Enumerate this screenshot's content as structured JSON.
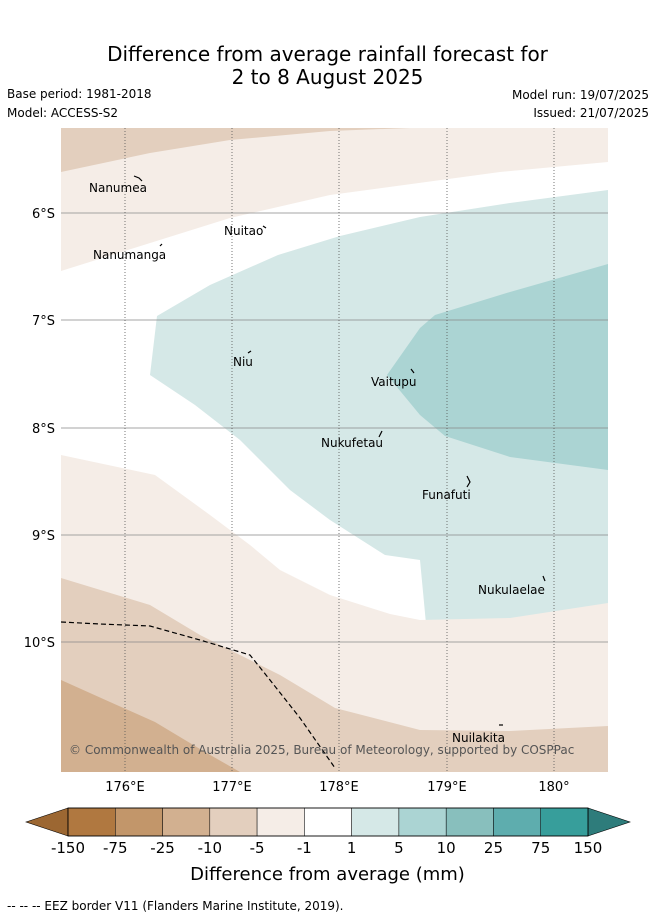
{
  "header": {
    "title_line1": "Difference from average rainfall forecast for",
    "title_line2": "2 to 8 August 2025",
    "base_period": "Base period: 1981-2018",
    "model": "Model: ACCESS-S2",
    "model_run": "Model run: 19/07/2025",
    "issued": "Issued: 21/07/2025"
  },
  "map": {
    "lat_labels": [
      "6°S",
      "7°S",
      "8°S",
      "9°S",
      "10°S"
    ],
    "lon_labels": [
      "176°E",
      "177°E",
      "178°E",
      "179°E",
      "180°"
    ],
    "copyright": "© Commonwealth of Australia 2025, Bureau of Meteorology, supported by COSPPac",
    "places": [
      {
        "name": "Nanumea"
      },
      {
        "name": "Nuitao"
      },
      {
        "name": "Nanumanga"
      },
      {
        "name": "Niu"
      },
      {
        "name": "Vaitupu"
      },
      {
        "name": "Nukufetau"
      },
      {
        "name": "Funafuti"
      },
      {
        "name": "Nukulaelae"
      },
      {
        "name": "Nuilakita"
      }
    ]
  },
  "colorbar": {
    "ticks": [
      "-150",
      "-75",
      "-25",
      "-10",
      "-5",
      "-1",
      "1",
      "5",
      "10",
      "25",
      "75",
      "150"
    ],
    "colors": [
      "#b07840",
      "#c2966a",
      "#d2b090",
      "#e3cfbe",
      "#f5ede7",
      "#ffffff",
      "#d5e8e7",
      "#abd4d3",
      "#88bfbd",
      "#5eadae",
      "#379e9b"
    ],
    "extend_low_color": "#9c6732",
    "extend_high_color": "#2e7c7b",
    "label": "Difference from average (mm)"
  },
  "footer": {
    "eez_legend": "--  --  -- EEZ border V11 (Flanders Marine Institute, 2019)."
  }
}
